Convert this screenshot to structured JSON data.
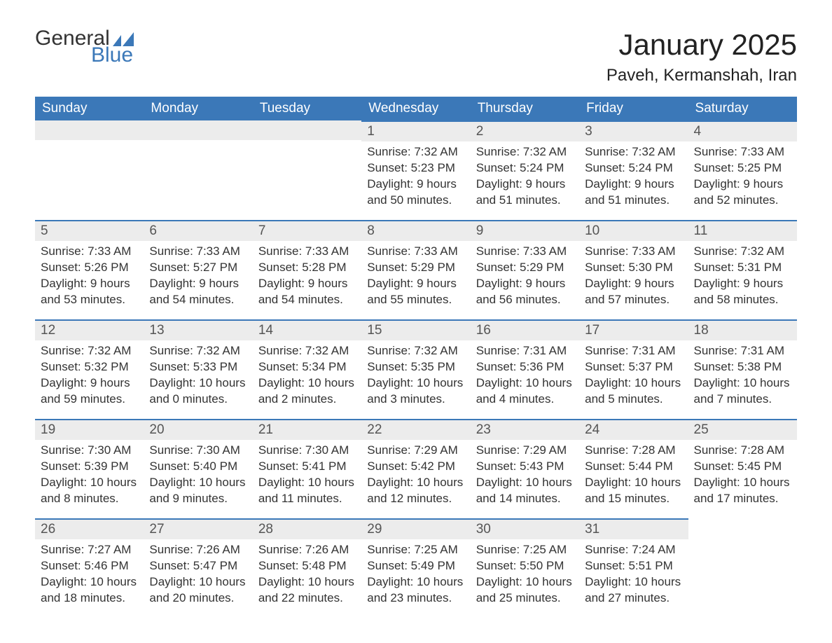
{
  "logo": {
    "text_general": "General",
    "text_blue": "Blue",
    "flag_color": "#3b78b8"
  },
  "header": {
    "month_title": "January 2025",
    "location": "Paveh, Kermanshah, Iran"
  },
  "styling": {
    "header_bg": "#3b78b8",
    "header_text": "#ffffff",
    "daynum_bg": "#ececec",
    "daynum_border": "#3b78b8",
    "body_bg": "#ffffff",
    "text_color": "#333333",
    "title_fontsize_pt": 32,
    "location_fontsize_pt": 18,
    "dayheader_fontsize_pt": 14,
    "daynum_fontsize_pt": 14,
    "body_fontsize_pt": 13
  },
  "day_headers": [
    "Sunday",
    "Monday",
    "Tuesday",
    "Wednesday",
    "Thursday",
    "Friday",
    "Saturday"
  ],
  "weeks": [
    [
      {
        "empty": true
      },
      {
        "empty": true
      },
      {
        "empty": true
      },
      {
        "day": "1",
        "sunrise": "7:32 AM",
        "sunset": "5:23 PM",
        "daylight": "9 hours and 50 minutes."
      },
      {
        "day": "2",
        "sunrise": "7:32 AM",
        "sunset": "5:24 PM",
        "daylight": "9 hours and 51 minutes."
      },
      {
        "day": "3",
        "sunrise": "7:32 AM",
        "sunset": "5:24 PM",
        "daylight": "9 hours and 51 minutes."
      },
      {
        "day": "4",
        "sunrise": "7:33 AM",
        "sunset": "5:25 PM",
        "daylight": "9 hours and 52 minutes."
      }
    ],
    [
      {
        "day": "5",
        "sunrise": "7:33 AM",
        "sunset": "5:26 PM",
        "daylight": "9 hours and 53 minutes."
      },
      {
        "day": "6",
        "sunrise": "7:33 AM",
        "sunset": "5:27 PM",
        "daylight": "9 hours and 54 minutes."
      },
      {
        "day": "7",
        "sunrise": "7:33 AM",
        "sunset": "5:28 PM",
        "daylight": "9 hours and 54 minutes."
      },
      {
        "day": "8",
        "sunrise": "7:33 AM",
        "sunset": "5:29 PM",
        "daylight": "9 hours and 55 minutes."
      },
      {
        "day": "9",
        "sunrise": "7:33 AM",
        "sunset": "5:29 PM",
        "daylight": "9 hours and 56 minutes."
      },
      {
        "day": "10",
        "sunrise": "7:33 AM",
        "sunset": "5:30 PM",
        "daylight": "9 hours and 57 minutes."
      },
      {
        "day": "11",
        "sunrise": "7:32 AM",
        "sunset": "5:31 PM",
        "daylight": "9 hours and 58 minutes."
      }
    ],
    [
      {
        "day": "12",
        "sunrise": "7:32 AM",
        "sunset": "5:32 PM",
        "daylight": "9 hours and 59 minutes."
      },
      {
        "day": "13",
        "sunrise": "7:32 AM",
        "sunset": "5:33 PM",
        "daylight": "10 hours and 0 minutes."
      },
      {
        "day": "14",
        "sunrise": "7:32 AM",
        "sunset": "5:34 PM",
        "daylight": "10 hours and 2 minutes."
      },
      {
        "day": "15",
        "sunrise": "7:32 AM",
        "sunset": "5:35 PM",
        "daylight": "10 hours and 3 minutes."
      },
      {
        "day": "16",
        "sunrise": "7:31 AM",
        "sunset": "5:36 PM",
        "daylight": "10 hours and 4 minutes."
      },
      {
        "day": "17",
        "sunrise": "7:31 AM",
        "sunset": "5:37 PM",
        "daylight": "10 hours and 5 minutes."
      },
      {
        "day": "18",
        "sunrise": "7:31 AM",
        "sunset": "5:38 PM",
        "daylight": "10 hours and 7 minutes."
      }
    ],
    [
      {
        "day": "19",
        "sunrise": "7:30 AM",
        "sunset": "5:39 PM",
        "daylight": "10 hours and 8 minutes."
      },
      {
        "day": "20",
        "sunrise": "7:30 AM",
        "sunset": "5:40 PM",
        "daylight": "10 hours and 9 minutes."
      },
      {
        "day": "21",
        "sunrise": "7:30 AM",
        "sunset": "5:41 PM",
        "daylight": "10 hours and 11 minutes."
      },
      {
        "day": "22",
        "sunrise": "7:29 AM",
        "sunset": "5:42 PM",
        "daylight": "10 hours and 12 minutes."
      },
      {
        "day": "23",
        "sunrise": "7:29 AM",
        "sunset": "5:43 PM",
        "daylight": "10 hours and 14 minutes."
      },
      {
        "day": "24",
        "sunrise": "7:28 AM",
        "sunset": "5:44 PM",
        "daylight": "10 hours and 15 minutes."
      },
      {
        "day": "25",
        "sunrise": "7:28 AM",
        "sunset": "5:45 PM",
        "daylight": "10 hours and 17 minutes."
      }
    ],
    [
      {
        "day": "26",
        "sunrise": "7:27 AM",
        "sunset": "5:46 PM",
        "daylight": "10 hours and 18 minutes."
      },
      {
        "day": "27",
        "sunrise": "7:26 AM",
        "sunset": "5:47 PM",
        "daylight": "10 hours and 20 minutes."
      },
      {
        "day": "28",
        "sunrise": "7:26 AM",
        "sunset": "5:48 PM",
        "daylight": "10 hours and 22 minutes."
      },
      {
        "day": "29",
        "sunrise": "7:25 AM",
        "sunset": "5:49 PM",
        "daylight": "10 hours and 23 minutes."
      },
      {
        "day": "30",
        "sunrise": "7:25 AM",
        "sunset": "5:50 PM",
        "daylight": "10 hours and 25 minutes."
      },
      {
        "day": "31",
        "sunrise": "7:24 AM",
        "sunset": "5:51 PM",
        "daylight": "10 hours and 27 minutes."
      },
      {
        "empty": true
      }
    ]
  ],
  "labels": {
    "sunrise": "Sunrise: ",
    "sunset": "Sunset: ",
    "daylight": "Daylight: "
  }
}
